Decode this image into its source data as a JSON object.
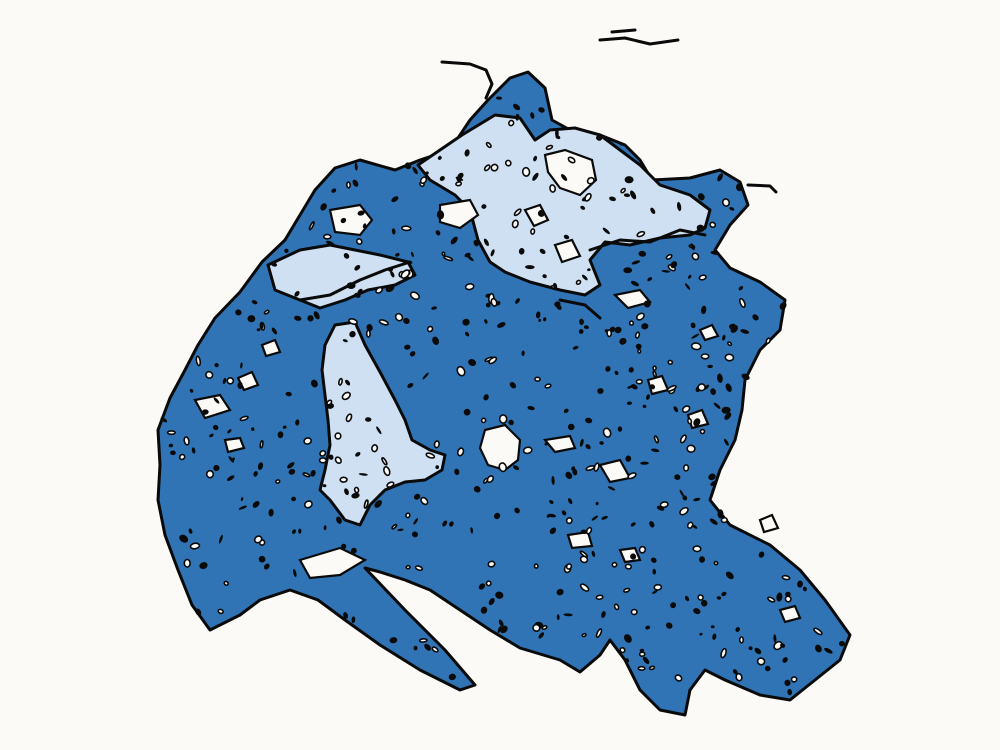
{
  "map": {
    "kind": "choropleth-regions",
    "legend": "none",
    "title": "",
    "colors": {
      "background": "#fbfaf7",
      "region_dark": "#3074b5",
      "region_light": "#cfe0f3",
      "outline": "#0a0a0a"
    },
    "regions": [
      {
        "id": "main-landmass",
        "class": "dark",
        "icon": "region-fill"
      },
      {
        "id": "north-basin",
        "class": "light",
        "icon": "region-fill"
      },
      {
        "id": "northwest-basin",
        "class": "light",
        "icon": "region-fill"
      },
      {
        "id": "central-west-lake",
        "class": "light",
        "icon": "region-fill"
      }
    ]
  }
}
